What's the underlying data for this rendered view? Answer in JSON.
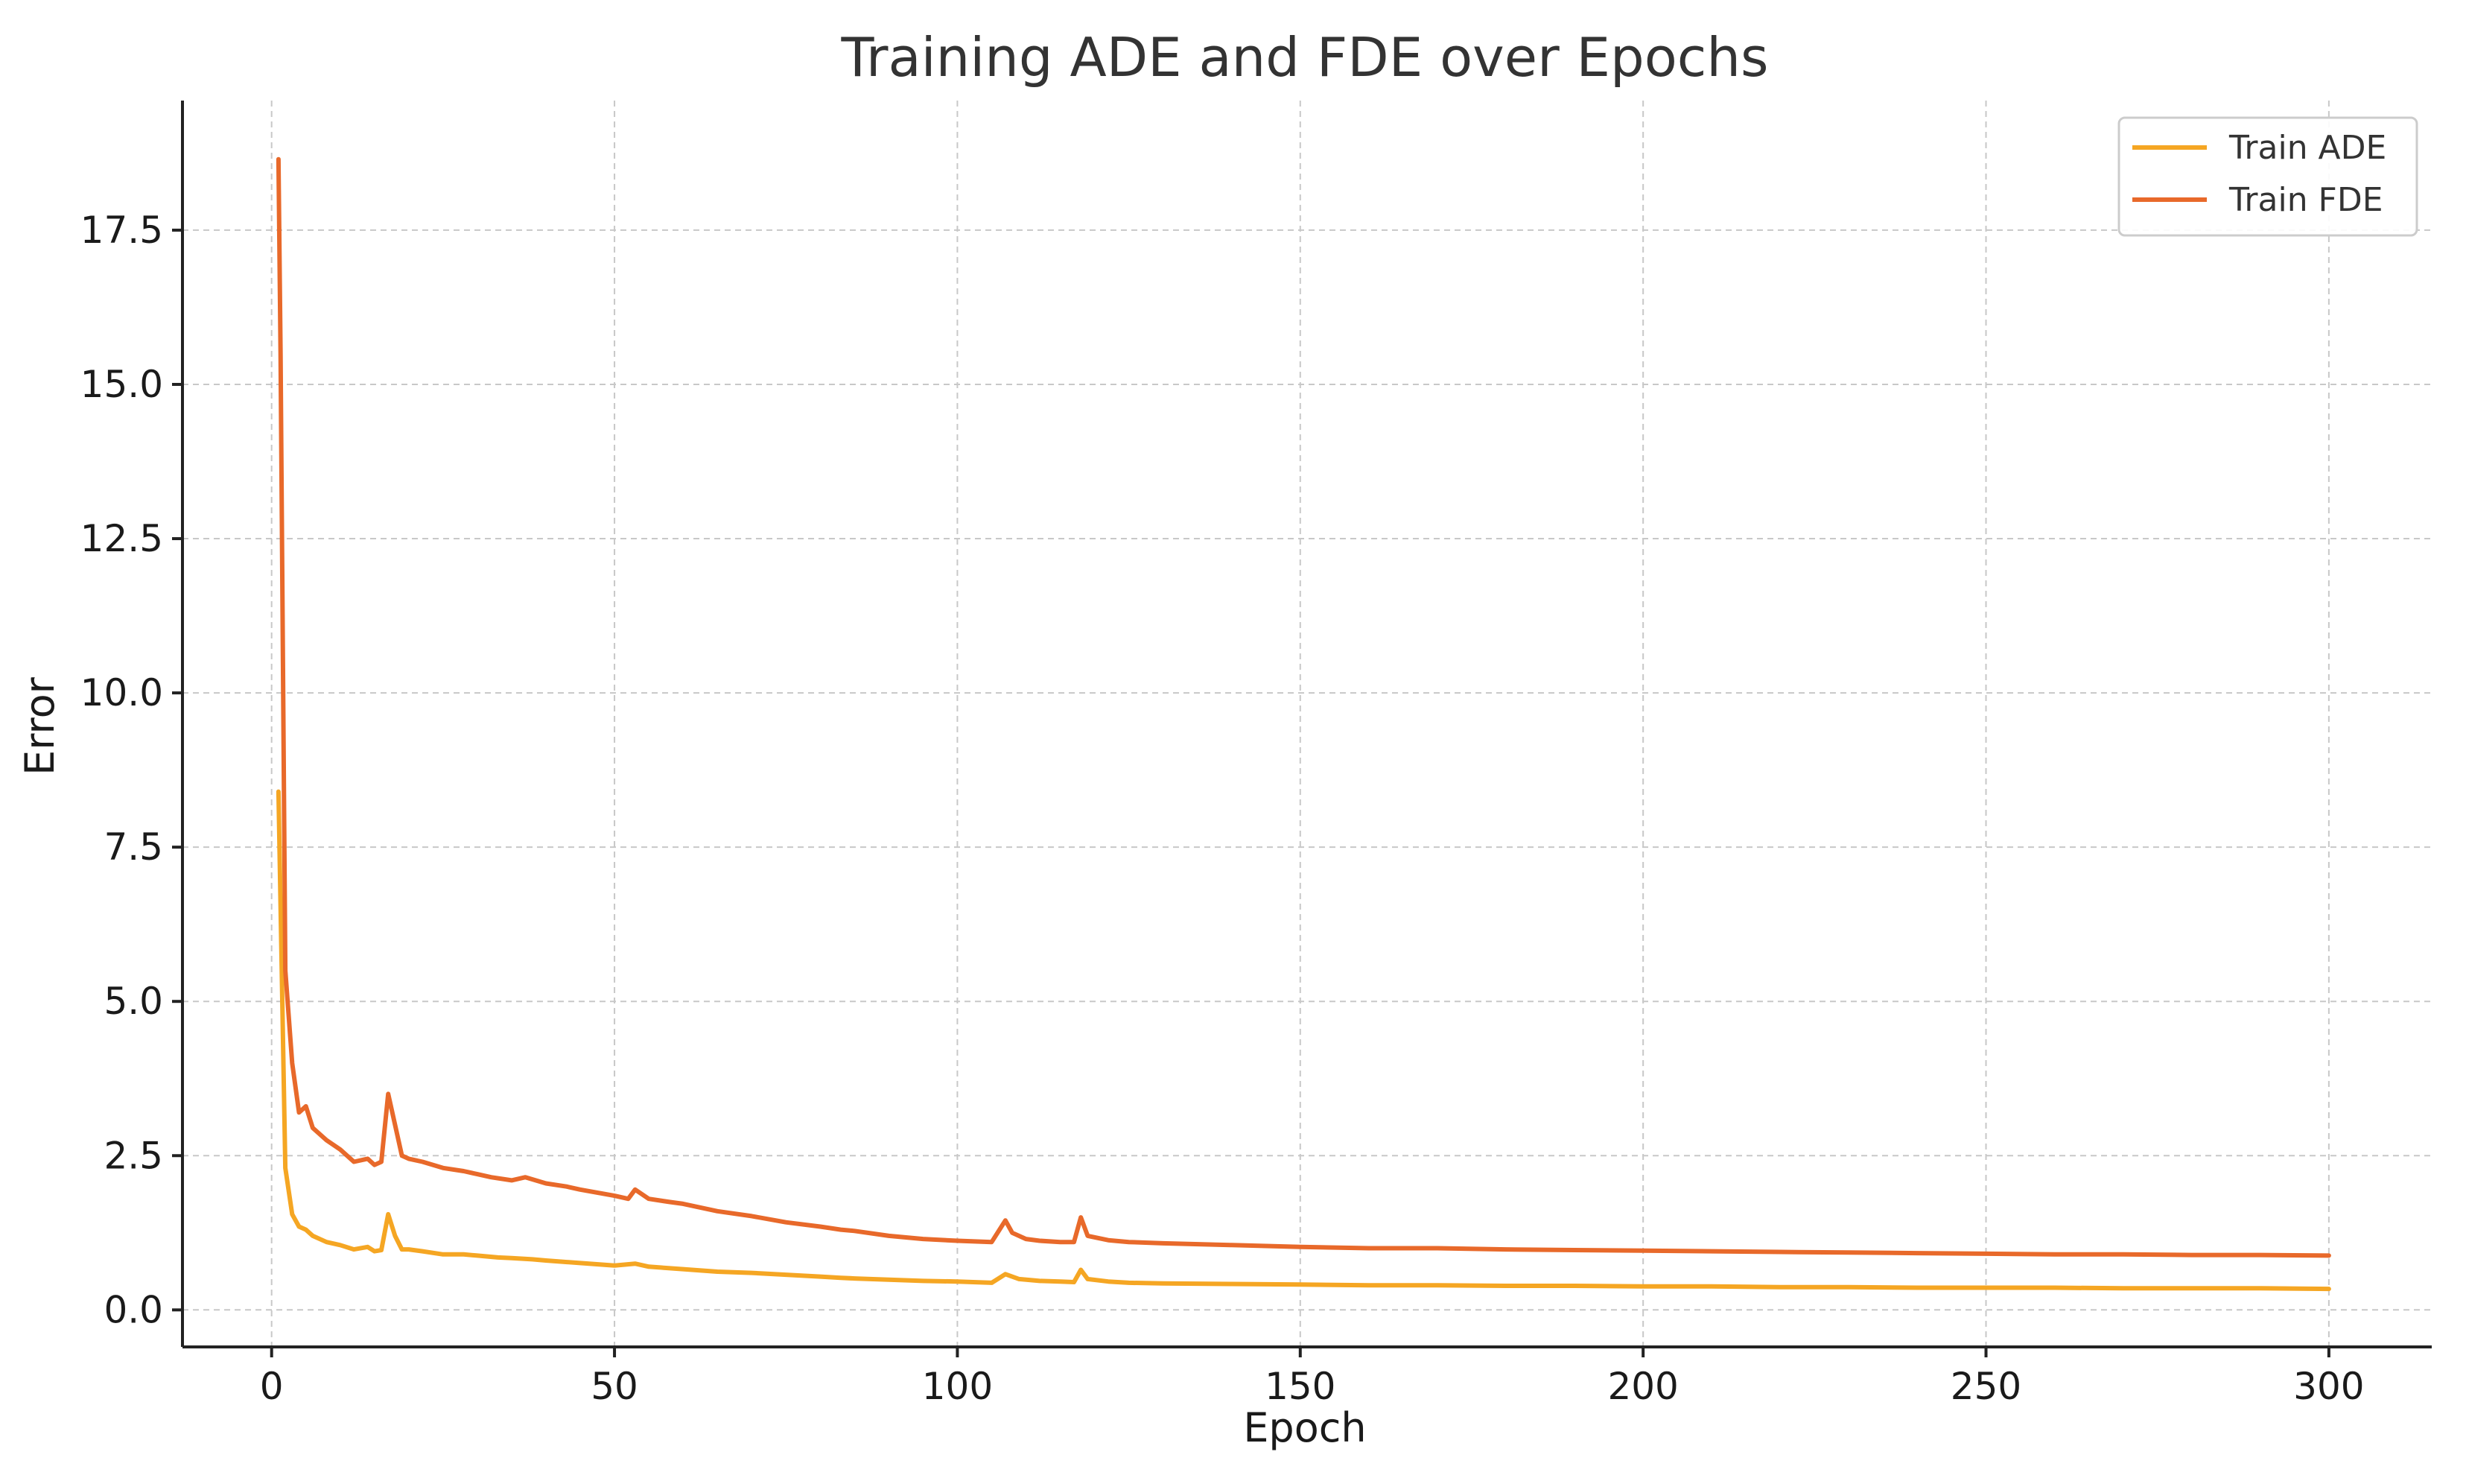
{
  "chart_data": {
    "type": "line",
    "title": "Training ADE and FDE over Epochs",
    "xlabel": "Epoch",
    "ylabel": "Error",
    "xlim": [
      -13,
      315
    ],
    "ylim": [
      -0.6,
      19.6
    ],
    "x_ticks": [
      0,
      50,
      100,
      150,
      200,
      250,
      300
    ],
    "x_tick_labels": [
      "0",
      "50",
      "100",
      "150",
      "200",
      "250",
      "300"
    ],
    "y_ticks": [
      0.0,
      2.5,
      5.0,
      7.5,
      10.0,
      12.5,
      15.0,
      17.5
    ],
    "y_tick_labels": [
      "0.0",
      "2.5",
      "5.0",
      "7.5",
      "10.0",
      "12.5",
      "15.0",
      "17.5"
    ],
    "grid": true,
    "legend_position": "top-right",
    "series": [
      {
        "name": "Train ADE",
        "color": "#F5A623",
        "x": [
          1,
          2,
          3,
          4,
          5,
          6,
          8,
          10,
          12,
          14,
          15,
          16,
          17,
          18,
          19,
          20,
          22,
          25,
          28,
          30,
          33,
          35,
          38,
          40,
          45,
          50,
          53,
          55,
          60,
          65,
          70,
          75,
          80,
          83,
          85,
          90,
          95,
          100,
          105,
          107,
          109,
          112,
          115,
          117,
          118,
          119,
          122,
          125,
          130,
          140,
          150,
          160,
          170,
          180,
          190,
          200,
          210,
          220,
          230,
          240,
          250,
          260,
          270,
          280,
          290,
          300
        ],
        "y": [
          8.4,
          2.3,
          1.55,
          1.35,
          1.3,
          1.2,
          1.1,
          1.05,
          0.98,
          1.02,
          0.95,
          0.97,
          1.55,
          1.2,
          0.98,
          0.98,
          0.95,
          0.9,
          0.9,
          0.88,
          0.85,
          0.84,
          0.82,
          0.8,
          0.76,
          0.72,
          0.75,
          0.7,
          0.66,
          0.62,
          0.6,
          0.57,
          0.54,
          0.52,
          0.51,
          0.49,
          0.47,
          0.46,
          0.44,
          0.58,
          0.5,
          0.47,
          0.46,
          0.45,
          0.65,
          0.5,
          0.46,
          0.44,
          0.43,
          0.42,
          0.41,
          0.4,
          0.4,
          0.39,
          0.39,
          0.38,
          0.38,
          0.37,
          0.37,
          0.36,
          0.36,
          0.36,
          0.35,
          0.35,
          0.35,
          0.34
        ]
      },
      {
        "name": "Train FDE",
        "color": "#E8692A",
        "x": [
          1,
          1.3,
          2,
          3,
          4,
          5,
          6,
          8,
          10,
          12,
          14,
          15,
          16,
          17,
          18,
          19,
          20,
          22,
          25,
          28,
          30,
          32,
          35,
          37,
          40,
          43,
          45,
          50,
          52,
          53,
          55,
          58,
          60,
          65,
          70,
          75,
          80,
          83,
          85,
          90,
          95,
          100,
          105,
          107,
          108,
          110,
          112,
          115,
          117,
          118,
          119,
          122,
          125,
          130,
          140,
          150,
          160,
          170,
          180,
          190,
          200,
          210,
          220,
          230,
          240,
          250,
          260,
          270,
          280,
          290,
          300
        ],
        "y": [
          18.65,
          15.5,
          5.5,
          4.0,
          3.2,
          3.3,
          2.95,
          2.75,
          2.6,
          2.4,
          2.45,
          2.35,
          2.4,
          3.5,
          3.0,
          2.5,
          2.45,
          2.4,
          2.3,
          2.25,
          2.2,
          2.15,
          2.1,
          2.15,
          2.05,
          2.0,
          1.95,
          1.85,
          1.8,
          1.95,
          1.8,
          1.75,
          1.72,
          1.6,
          1.52,
          1.42,
          1.35,
          1.3,
          1.28,
          1.2,
          1.15,
          1.12,
          1.1,
          1.45,
          1.25,
          1.15,
          1.12,
          1.1,
          1.1,
          1.5,
          1.2,
          1.13,
          1.1,
          1.08,
          1.05,
          1.02,
          1.0,
          1.0,
          0.98,
          0.97,
          0.96,
          0.95,
          0.94,
          0.93,
          0.92,
          0.91,
          0.9,
          0.9,
          0.89,
          0.89,
          0.88
        ]
      }
    ]
  }
}
